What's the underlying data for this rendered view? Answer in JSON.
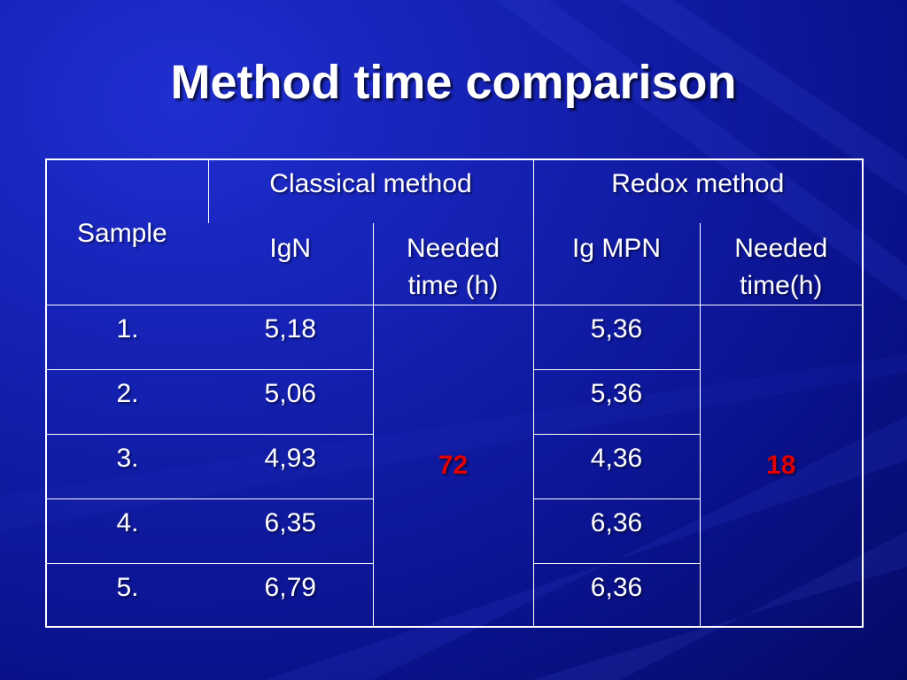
{
  "slide": {
    "title": "Method time comparison"
  },
  "table": {
    "header": {
      "sample_label": "Sample",
      "classical": {
        "group_label": "Classical method",
        "col1_label": "IgN",
        "col2_label_line1": "Needed",
        "col2_label_line2": "time (h)"
      },
      "redox": {
        "group_label": "Redox method",
        "col1_label": "Ig MPN",
        "col2_label_line1": "Needed",
        "col2_label_line2": "time(h)"
      }
    },
    "rows": [
      {
        "sample": "1.",
        "ign": "5,18",
        "lgmpn": "5,36"
      },
      {
        "sample": "2.",
        "ign": "5,06",
        "lgmpn": "5,36"
      },
      {
        "sample": "3.",
        "ign": "4,93",
        "lgmpn": "4,36"
      },
      {
        "sample": "4.",
        "ign": "6,35",
        "lgmpn": "6,36"
      },
      {
        "sample": "5.",
        "ign": "6,79",
        "lgmpn": "6,36"
      }
    ],
    "classical_time": "72",
    "redox_time": "18"
  },
  "colors": {
    "background": "#1420b0",
    "text": "#ffffff",
    "highlight": "#e00000"
  }
}
